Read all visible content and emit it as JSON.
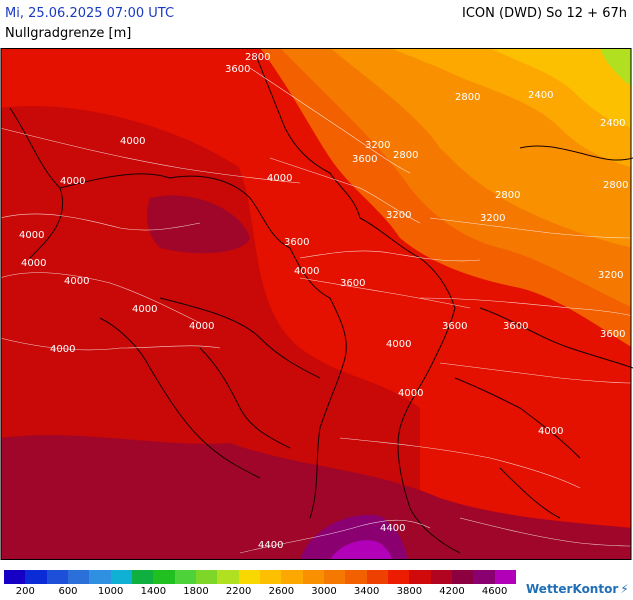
{
  "header": {
    "datetime": "Mi, 25.06.2025 07:00 UTC",
    "model": "ICON (DWD) So 12 + 67h",
    "parameter": "Nullgradgrenze [m]"
  },
  "map": {
    "isolines": [
      "2800",
      "2800",
      "2400",
      "2400",
      "2800",
      "3600",
      "4000",
      "4000",
      "3200",
      "3600",
      "2800",
      "3200",
      "2800",
      "3200",
      "4000",
      "3600",
      "4000",
      "4000",
      "4000",
      "4000",
      "3600",
      "3200",
      "4000",
      "4000",
      "3600",
      "3600",
      "3600",
      "4000",
      "4000",
      "4000",
      "4000",
      "4400",
      "4400"
    ]
  },
  "legend": {
    "colors": [
      "#1600c6",
      "#0a2bd6",
      "#1d4fd8",
      "#2a70d8",
      "#2f8fe0",
      "#0fb0d4",
      "#10b040",
      "#20c020",
      "#4ed23a",
      "#7ed628",
      "#b0e020",
      "#f8d800",
      "#fcc000",
      "#fca800",
      "#f89000",
      "#f57800",
      "#f26000",
      "#ee4000",
      "#ec1c00",
      "#d00a0a",
      "#b00420",
      "#8c0040",
      "#8a0070",
      "#b200b8"
    ],
    "labels": [
      "200",
      "600",
      "1000",
      "1400",
      "1800",
      "2200",
      "2600",
      "3000",
      "3400",
      "3800",
      "4200",
      "4600"
    ]
  },
  "brand": {
    "name": "WetterKontor",
    "logo_icon": "lightning-icon"
  }
}
